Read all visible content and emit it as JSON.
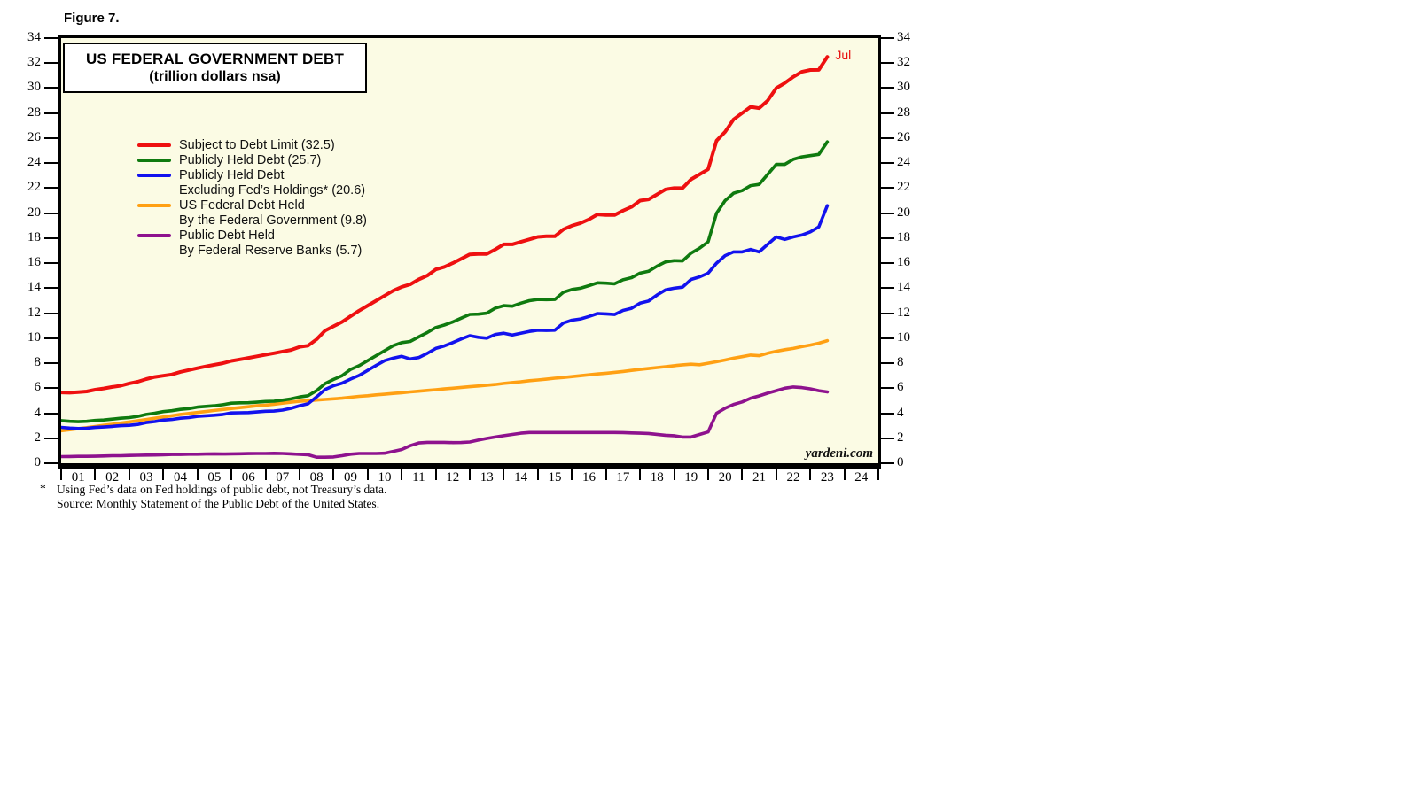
{
  "page": {
    "figure_label": "Figure 7."
  },
  "chart": {
    "title_line1": "US FEDERAL GOVERNMENT DEBT",
    "title_line2": "(trillion dollars nsa)",
    "last_point_annotation": "Jul",
    "watermark": "yardeni.com",
    "plot_background": "#fbfbe4",
    "annotation_color": "#e80f0f"
  },
  "legend": {
    "items": [
      {
        "id": "subject-to-debt-limit",
        "color": "#ee1010",
        "lines": [
          "Subject to Debt Limit (32.5)"
        ]
      },
      {
        "id": "publicly-held-debt",
        "color": "#0f7a0f",
        "lines": [
          "Publicly Held Debt (25.7)"
        ]
      },
      {
        "id": "publicly-held-debt-ex-fed",
        "color": "#1212ee",
        "lines": [
          "Publicly Held Debt",
          "Excluding Fed’s Holdings* (20.6)"
        ]
      },
      {
        "id": "debt-held-by-federal-government",
        "color": "#ffa013",
        "lines": [
          "US Federal Debt Held",
          "By the Federal Government (9.8)"
        ]
      },
      {
        "id": "debt-held-by-fed-reserve-banks",
        "color": "#8e128e",
        "lines": [
          "Public Debt Held",
          "By Federal Reserve Banks (5.7)"
        ]
      }
    ]
  },
  "footnote": {
    "marker": "*",
    "line1": "Using Fed’s data on Fed holdings of public debt, not Treasury’s data.",
    "line2": "Source: Monthly Statement of the Public Debt of the United States."
  },
  "chart_data": {
    "type": "line",
    "title": "US FEDERAL GOVERNMENT DEBT (trillion dollars nsa)",
    "xlabel": "",
    "ylabel": "trillion dollars",
    "xlim": [
      2001,
      2025
    ],
    "ylim": [
      0,
      34
    ],
    "grid": false,
    "legend_position": "upper-left-inside",
    "y_ticks": [
      0,
      2,
      4,
      6,
      8,
      10,
      12,
      14,
      16,
      18,
      20,
      22,
      24,
      26,
      28,
      30,
      32,
      34
    ],
    "x_tick_labels": [
      "01",
      "02",
      "03",
      "04",
      "05",
      "06",
      "07",
      "08",
      "09",
      "10",
      "11",
      "12",
      "13",
      "14",
      "15",
      "16",
      "17",
      "18",
      "19",
      "20",
      "21",
      "22",
      "23",
      "24"
    ],
    "x_start": 2001,
    "x_step": 0.25,
    "last_x": "Jul 2023",
    "series": [
      {
        "id": "subject-to-debt-limit",
        "name": "Subject to Debt Limit",
        "last_value": 32.5,
        "color": "#ee1010",
        "width": 4.0,
        "values": [
          5.66,
          5.64,
          5.68,
          5.74,
          5.88,
          5.98,
          6.1,
          6.2,
          6.38,
          6.52,
          6.73,
          6.9,
          7.0,
          7.1,
          7.3,
          7.45,
          7.6,
          7.74,
          7.87,
          8.0,
          8.18,
          8.3,
          8.42,
          8.55,
          8.68,
          8.8,
          8.93,
          9.06,
          9.3,
          9.4,
          9.9,
          10.6,
          10.95,
          11.3,
          11.75,
          12.2,
          12.6,
          13.0,
          13.4,
          13.8,
          14.1,
          14.3,
          14.7,
          15.0,
          15.5,
          15.7,
          16.0,
          16.35,
          16.7,
          16.74,
          16.74,
          17.1,
          17.5,
          17.5,
          17.7,
          17.9,
          18.1,
          18.15,
          18.15,
          18.7,
          19.0,
          19.2,
          19.5,
          19.9,
          19.85,
          19.85,
          20.2,
          20.5,
          21.0,
          21.1,
          21.5,
          21.9,
          22.0,
          22.0,
          22.7,
          23.1,
          23.5,
          25.8,
          26.5,
          27.5,
          28.0,
          28.5,
          28.4,
          29.0,
          30.0,
          30.4,
          30.9,
          31.3,
          31.45,
          31.46,
          32.5
        ]
      },
      {
        "id": "publicly-held-debt",
        "name": "Publicly Held Debt",
        "last_value": 25.7,
        "color": "#0f7a0f",
        "width": 3.6,
        "values": [
          3.41,
          3.35,
          3.32,
          3.35,
          3.42,
          3.46,
          3.53,
          3.6,
          3.65,
          3.75,
          3.9,
          4.0,
          4.13,
          4.2,
          4.31,
          4.37,
          4.49,
          4.55,
          4.6,
          4.68,
          4.8,
          4.83,
          4.84,
          4.88,
          4.94,
          4.96,
          5.04,
          5.14,
          5.3,
          5.4,
          5.8,
          6.37,
          6.7,
          7.0,
          7.5,
          7.8,
          8.2,
          8.6,
          9.0,
          9.4,
          9.65,
          9.74,
          10.1,
          10.45,
          10.85,
          11.05,
          11.3,
          11.6,
          11.9,
          11.92,
          12.0,
          12.4,
          12.6,
          12.56,
          12.8,
          13.0,
          13.1,
          13.08,
          13.1,
          13.67,
          13.9,
          14.0,
          14.2,
          14.43,
          14.4,
          14.35,
          14.67,
          14.84,
          15.2,
          15.35,
          15.76,
          16.1,
          16.2,
          16.18,
          16.8,
          17.2,
          17.7,
          20.0,
          21.0,
          21.6,
          21.8,
          22.2,
          22.3,
          23.1,
          23.9,
          23.9,
          24.3,
          24.5,
          24.6,
          24.7,
          25.7
        ]
      },
      {
        "id": "publicly-held-debt-ex-fed",
        "name": "Publicly Held Debt Excluding Fed's Holdings",
        "last_value": 20.6,
        "color": "#1212ee",
        "width": 3.6,
        "values": [
          2.87,
          2.81,
          2.78,
          2.8,
          2.86,
          2.9,
          2.95,
          3.0,
          3.03,
          3.1,
          3.25,
          3.33,
          3.45,
          3.5,
          3.6,
          3.65,
          3.75,
          3.8,
          3.84,
          3.9,
          4.02,
          4.04,
          4.05,
          4.1,
          4.16,
          4.17,
          4.25,
          4.39,
          4.6,
          4.75,
          5.3,
          5.89,
          6.2,
          6.4,
          6.73,
          7.02,
          7.42,
          7.82,
          8.2,
          8.4,
          8.55,
          8.34,
          8.45,
          8.78,
          9.18,
          9.38,
          9.65,
          9.94,
          10.2,
          10.07,
          10.0,
          10.3,
          10.4,
          10.26,
          10.4,
          10.54,
          10.64,
          10.62,
          10.64,
          11.21,
          11.44,
          11.54,
          11.74,
          11.97,
          11.94,
          11.89,
          12.22,
          12.39,
          12.8,
          12.97,
          13.45,
          13.86,
          14.0,
          14.08,
          14.7,
          14.9,
          15.2,
          16.0,
          16.6,
          16.9,
          16.9,
          17.1,
          16.9,
          17.5,
          18.1,
          17.9,
          18.1,
          18.25,
          18.5,
          18.9,
          20.6
        ]
      },
      {
        "id": "debt-held-by-federal-government",
        "name": "US Federal Debt Held By the Federal Government",
        "last_value": 9.8,
        "color": "#ffa013",
        "width": 3.6,
        "values": [
          2.6,
          2.68,
          2.76,
          2.85,
          2.94,
          3.03,
          3.12,
          3.21,
          3.3,
          3.4,
          3.5,
          3.6,
          3.7,
          3.8,
          3.9,
          3.98,
          4.06,
          4.14,
          4.22,
          4.3,
          4.38,
          4.45,
          4.52,
          4.6,
          4.65,
          4.72,
          4.8,
          4.88,
          4.95,
          5.0,
          5.05,
          5.1,
          5.15,
          5.2,
          5.28,
          5.35,
          5.4,
          5.47,
          5.52,
          5.58,
          5.64,
          5.7,
          5.76,
          5.82,
          5.88,
          5.94,
          6.0,
          6.06,
          6.12,
          6.18,
          6.24,
          6.3,
          6.38,
          6.45,
          6.52,
          6.6,
          6.66,
          6.72,
          6.8,
          6.86,
          6.93,
          7.0,
          7.07,
          7.14,
          7.2,
          7.27,
          7.34,
          7.42,
          7.5,
          7.57,
          7.65,
          7.72,
          7.8,
          7.87,
          7.92,
          7.88,
          8.0,
          8.12,
          8.25,
          8.4,
          8.52,
          8.65,
          8.6,
          8.8,
          8.95,
          9.08,
          9.18,
          9.32,
          9.45,
          9.6,
          9.8
        ]
      },
      {
        "id": "debt-held-by-fed-reserve-banks",
        "name": "Public Debt Held By Federal Reserve Banks",
        "last_value": 5.7,
        "color": "#8e128e",
        "width": 3.6,
        "values": [
          0.53,
          0.54,
          0.55,
          0.55,
          0.56,
          0.58,
          0.6,
          0.6,
          0.62,
          0.64,
          0.65,
          0.66,
          0.68,
          0.7,
          0.7,
          0.72,
          0.72,
          0.74,
          0.75,
          0.74,
          0.75,
          0.76,
          0.77,
          0.78,
          0.78,
          0.79,
          0.78,
          0.75,
          0.71,
          0.68,
          0.48,
          0.48,
          0.5,
          0.6,
          0.72,
          0.78,
          0.78,
          0.78,
          0.8,
          0.95,
          1.1,
          1.4,
          1.62,
          1.67,
          1.67,
          1.67,
          1.65,
          1.66,
          1.7,
          1.85,
          1.98,
          2.1,
          2.2,
          2.3,
          2.4,
          2.46,
          2.46,
          2.46,
          2.46,
          2.46,
          2.46,
          2.46,
          2.46,
          2.46,
          2.46,
          2.46,
          2.45,
          2.42,
          2.4,
          2.38,
          2.31,
          2.24,
          2.2,
          2.1,
          2.1,
          2.3,
          2.5,
          4.0,
          4.4,
          4.7,
          4.9,
          5.2,
          5.38,
          5.6,
          5.8,
          6.0,
          6.1,
          6.05,
          5.95,
          5.8,
          5.7
        ]
      }
    ]
  }
}
